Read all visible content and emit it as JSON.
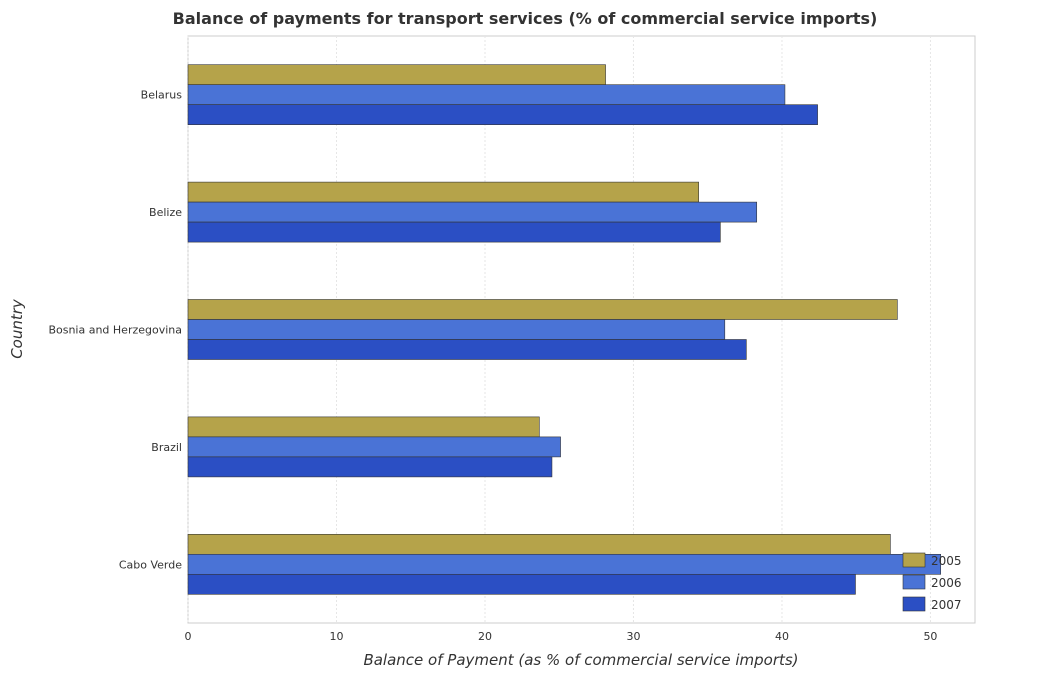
{
  "chart_data": {
    "type": "bar",
    "orientation": "horizontal",
    "title": "Balance of payments for transport services (% of commercial service imports)",
    "xlabel": "Balance of Payment (as % of commercial service imports)",
    "ylabel": "Country",
    "categories": [
      "Belarus",
      "Belize",
      "Bosnia and Herzegovina",
      "Brazil",
      "Cabo Verde"
    ],
    "series": [
      {
        "name": "2005",
        "color": "#b5a34a",
        "values": [
          28.12,
          34.39,
          47.77,
          23.66,
          47.3
        ]
      },
      {
        "name": "2006",
        "color": "#4a73d6",
        "values": [
          40.2,
          38.3,
          36.15,
          25.09,
          50.69
        ]
      },
      {
        "name": "2007",
        "color": "#2b4fc4",
        "values": [
          42.4,
          35.85,
          37.6,
          24.51,
          44.95
        ]
      }
    ],
    "xlim": [
      0,
      53
    ],
    "xticks": [
      0,
      10,
      20,
      30,
      40,
      50
    ],
    "grid": true,
    "legend_position": "bottom-right"
  }
}
